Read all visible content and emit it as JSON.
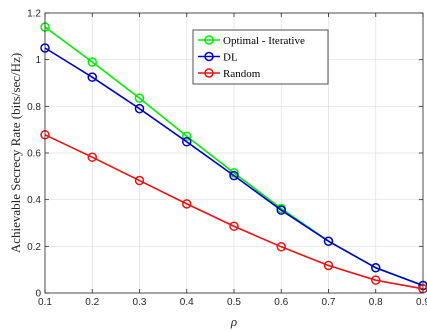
{
  "chart_data": {
    "type": "line",
    "title": "",
    "xlabel": "ρ",
    "ylabel": "Achievable Secrecy Rate (bits/sec/Hz)",
    "xlim": [
      0.1,
      0.9
    ],
    "ylim": [
      0,
      1.2
    ],
    "xticks": [
      "0.1",
      "0.2",
      "0.3",
      "0.4",
      "0.5",
      "0.6",
      "0.7",
      "0.8",
      "0.9"
    ],
    "yticks": [
      "0",
      "0.2",
      "0.4",
      "0.6",
      "0.8",
      "1",
      "1.2"
    ],
    "grid": true,
    "legend_position": "top-right",
    "x": [
      0.1,
      0.2,
      0.3,
      0.4,
      0.5,
      0.6,
      0.7,
      0.8,
      0.9
    ],
    "series": [
      {
        "name": "Optimal - Iterative",
        "color": "#00ee00",
        "marker": "circle",
        "values": [
          1.14,
          0.99,
          0.835,
          0.672,
          0.515,
          0.362,
          0.222,
          0.108,
          0.032
        ]
      },
      {
        "name": "DL",
        "color": "#0000cc",
        "marker": "circle",
        "values": [
          1.05,
          0.925,
          0.79,
          0.648,
          0.503,
          0.355,
          0.222,
          0.108,
          0.032
        ]
      },
      {
        "name": "Random",
        "color": "#ee1111",
        "marker": "circle",
        "values": [
          0.678,
          0.582,
          0.482,
          0.382,
          0.286,
          0.198,
          0.118,
          0.055,
          0.018
        ]
      }
    ]
  }
}
